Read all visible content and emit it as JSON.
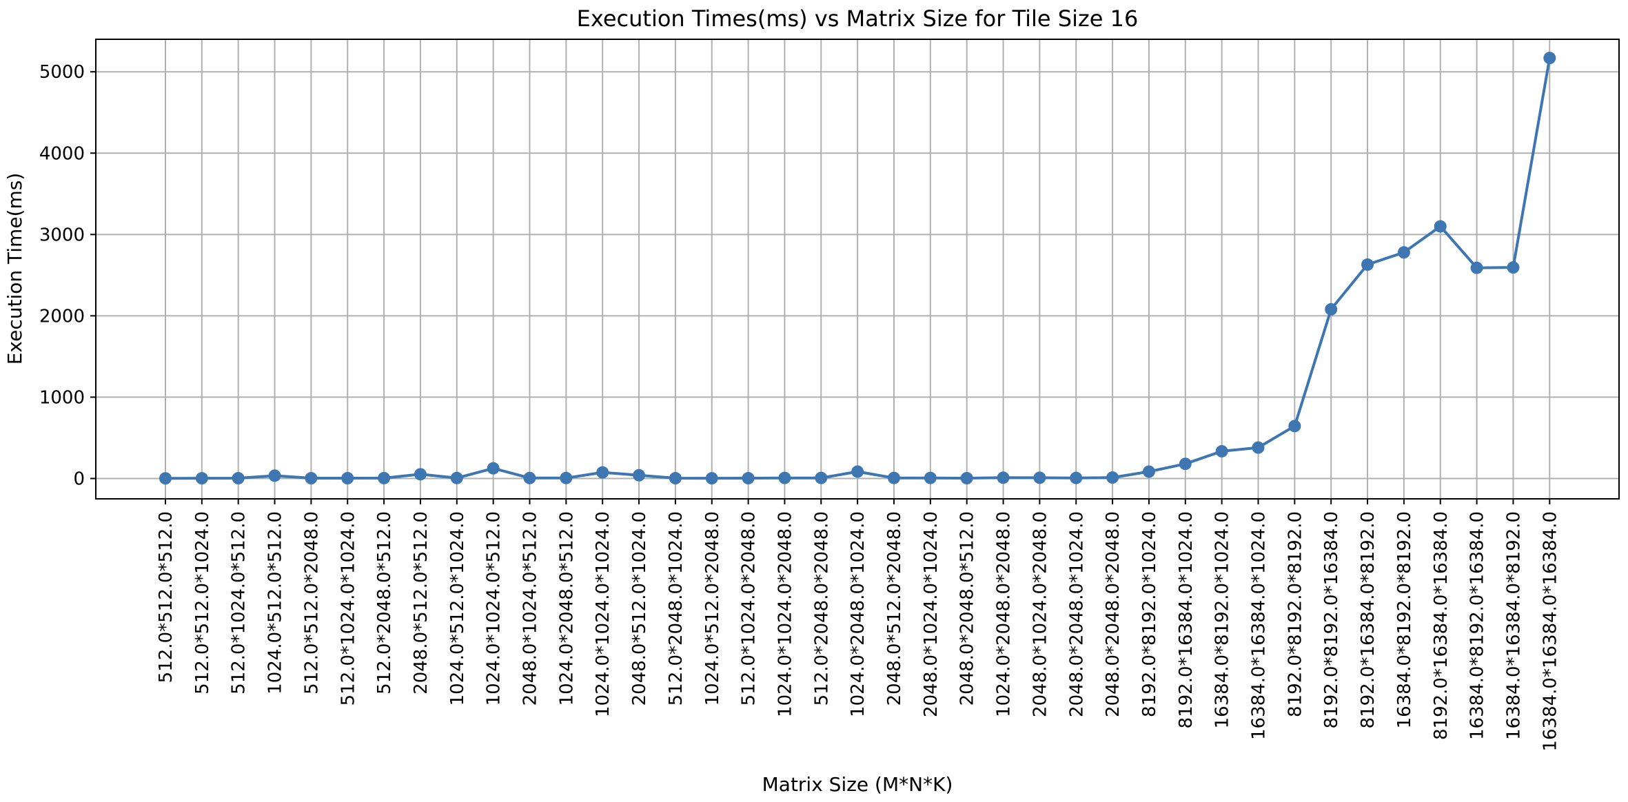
{
  "chart_data": {
    "type": "line",
    "title": "Execution Times(ms) vs Matrix Size for Tile Size 16",
    "xlabel": "Matrix Size (M*N*K)",
    "ylabel": "Execution Time(ms)",
    "ylim": [
      -250,
      5400
    ],
    "yticks": [
      0,
      1000,
      2000,
      3000,
      4000,
      5000
    ],
    "grid": true,
    "color": "#3d76b1",
    "categories": [
      "512.0*512.0*512.0",
      "512.0*512.0*1024.0",
      "512.0*1024.0*512.0",
      "1024.0*512.0*512.0",
      "512.0*512.0*2048.0",
      "512.0*1024.0*1024.0",
      "512.0*2048.0*512.0",
      "2048.0*512.0*512.0",
      "1024.0*512.0*1024.0",
      "1024.0*1024.0*512.0",
      "2048.0*1024.0*512.0",
      "1024.0*2048.0*512.0",
      "1024.0*1024.0*1024.0",
      "2048.0*512.0*1024.0",
      "512.0*2048.0*1024.0",
      "1024.0*512.0*2048.0",
      "512.0*1024.0*2048.0",
      "1024.0*1024.0*2048.0",
      "512.0*2048.0*2048.0",
      "1024.0*2048.0*1024.0",
      "2048.0*512.0*2048.0",
      "2048.0*1024.0*1024.0",
      "2048.0*2048.0*512.0",
      "1024.0*2048.0*2048.0",
      "2048.0*1024.0*2048.0",
      "2048.0*2048.0*1024.0",
      "2048.0*2048.0*2048.0",
      "8192.0*8192.0*1024.0",
      "8192.0*16384.0*1024.0",
      "16384.0*8192.0*1024.0",
      "16384.0*16384.0*1024.0",
      "8192.0*8192.0*8192.0",
      "8192.0*8192.0*16384.0",
      "8192.0*16384.0*8192.0",
      "16384.0*8192.0*8192.0",
      "8192.0*16384.0*16384.0",
      "16384.0*8192.0*16384.0",
      "16384.0*16384.0*8192.0",
      "16384.0*16384.0*16384.0"
    ],
    "values": [
      2,
      3,
      4,
      35,
      4,
      4,
      5,
      52,
      6,
      125,
      6,
      6,
      75,
      40,
      4,
      3,
      4,
      7,
      7,
      85,
      7,
      7,
      4,
      10,
      9,
      7,
      12,
      85,
      180,
      335,
      380,
      645,
      2080,
      2630,
      2780,
      3100,
      2590,
      2595,
      5170
    ]
  }
}
